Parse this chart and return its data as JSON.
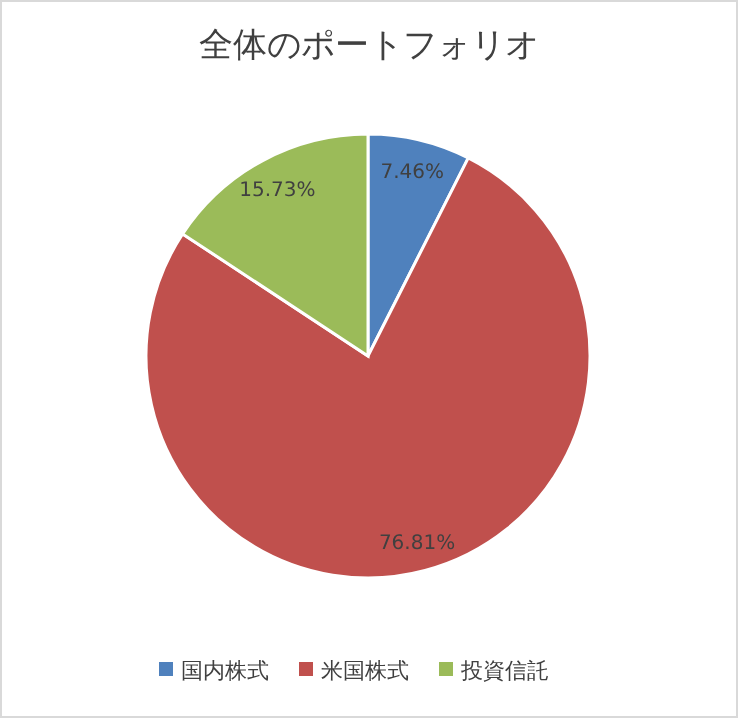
{
  "chart_data": {
    "type": "pie",
    "title": "全体のポートフォリオ",
    "categories": [
      "国内株式",
      "米国株式",
      "投資信託"
    ],
    "values": [
      7.46,
      76.81,
      15.73
    ],
    "colors": [
      "#4f81bd",
      "#c0504d",
      "#9bbb59"
    ],
    "value_labels": [
      "7.46%",
      "76.81%",
      "15.73%"
    ],
    "legend": "bottom"
  }
}
